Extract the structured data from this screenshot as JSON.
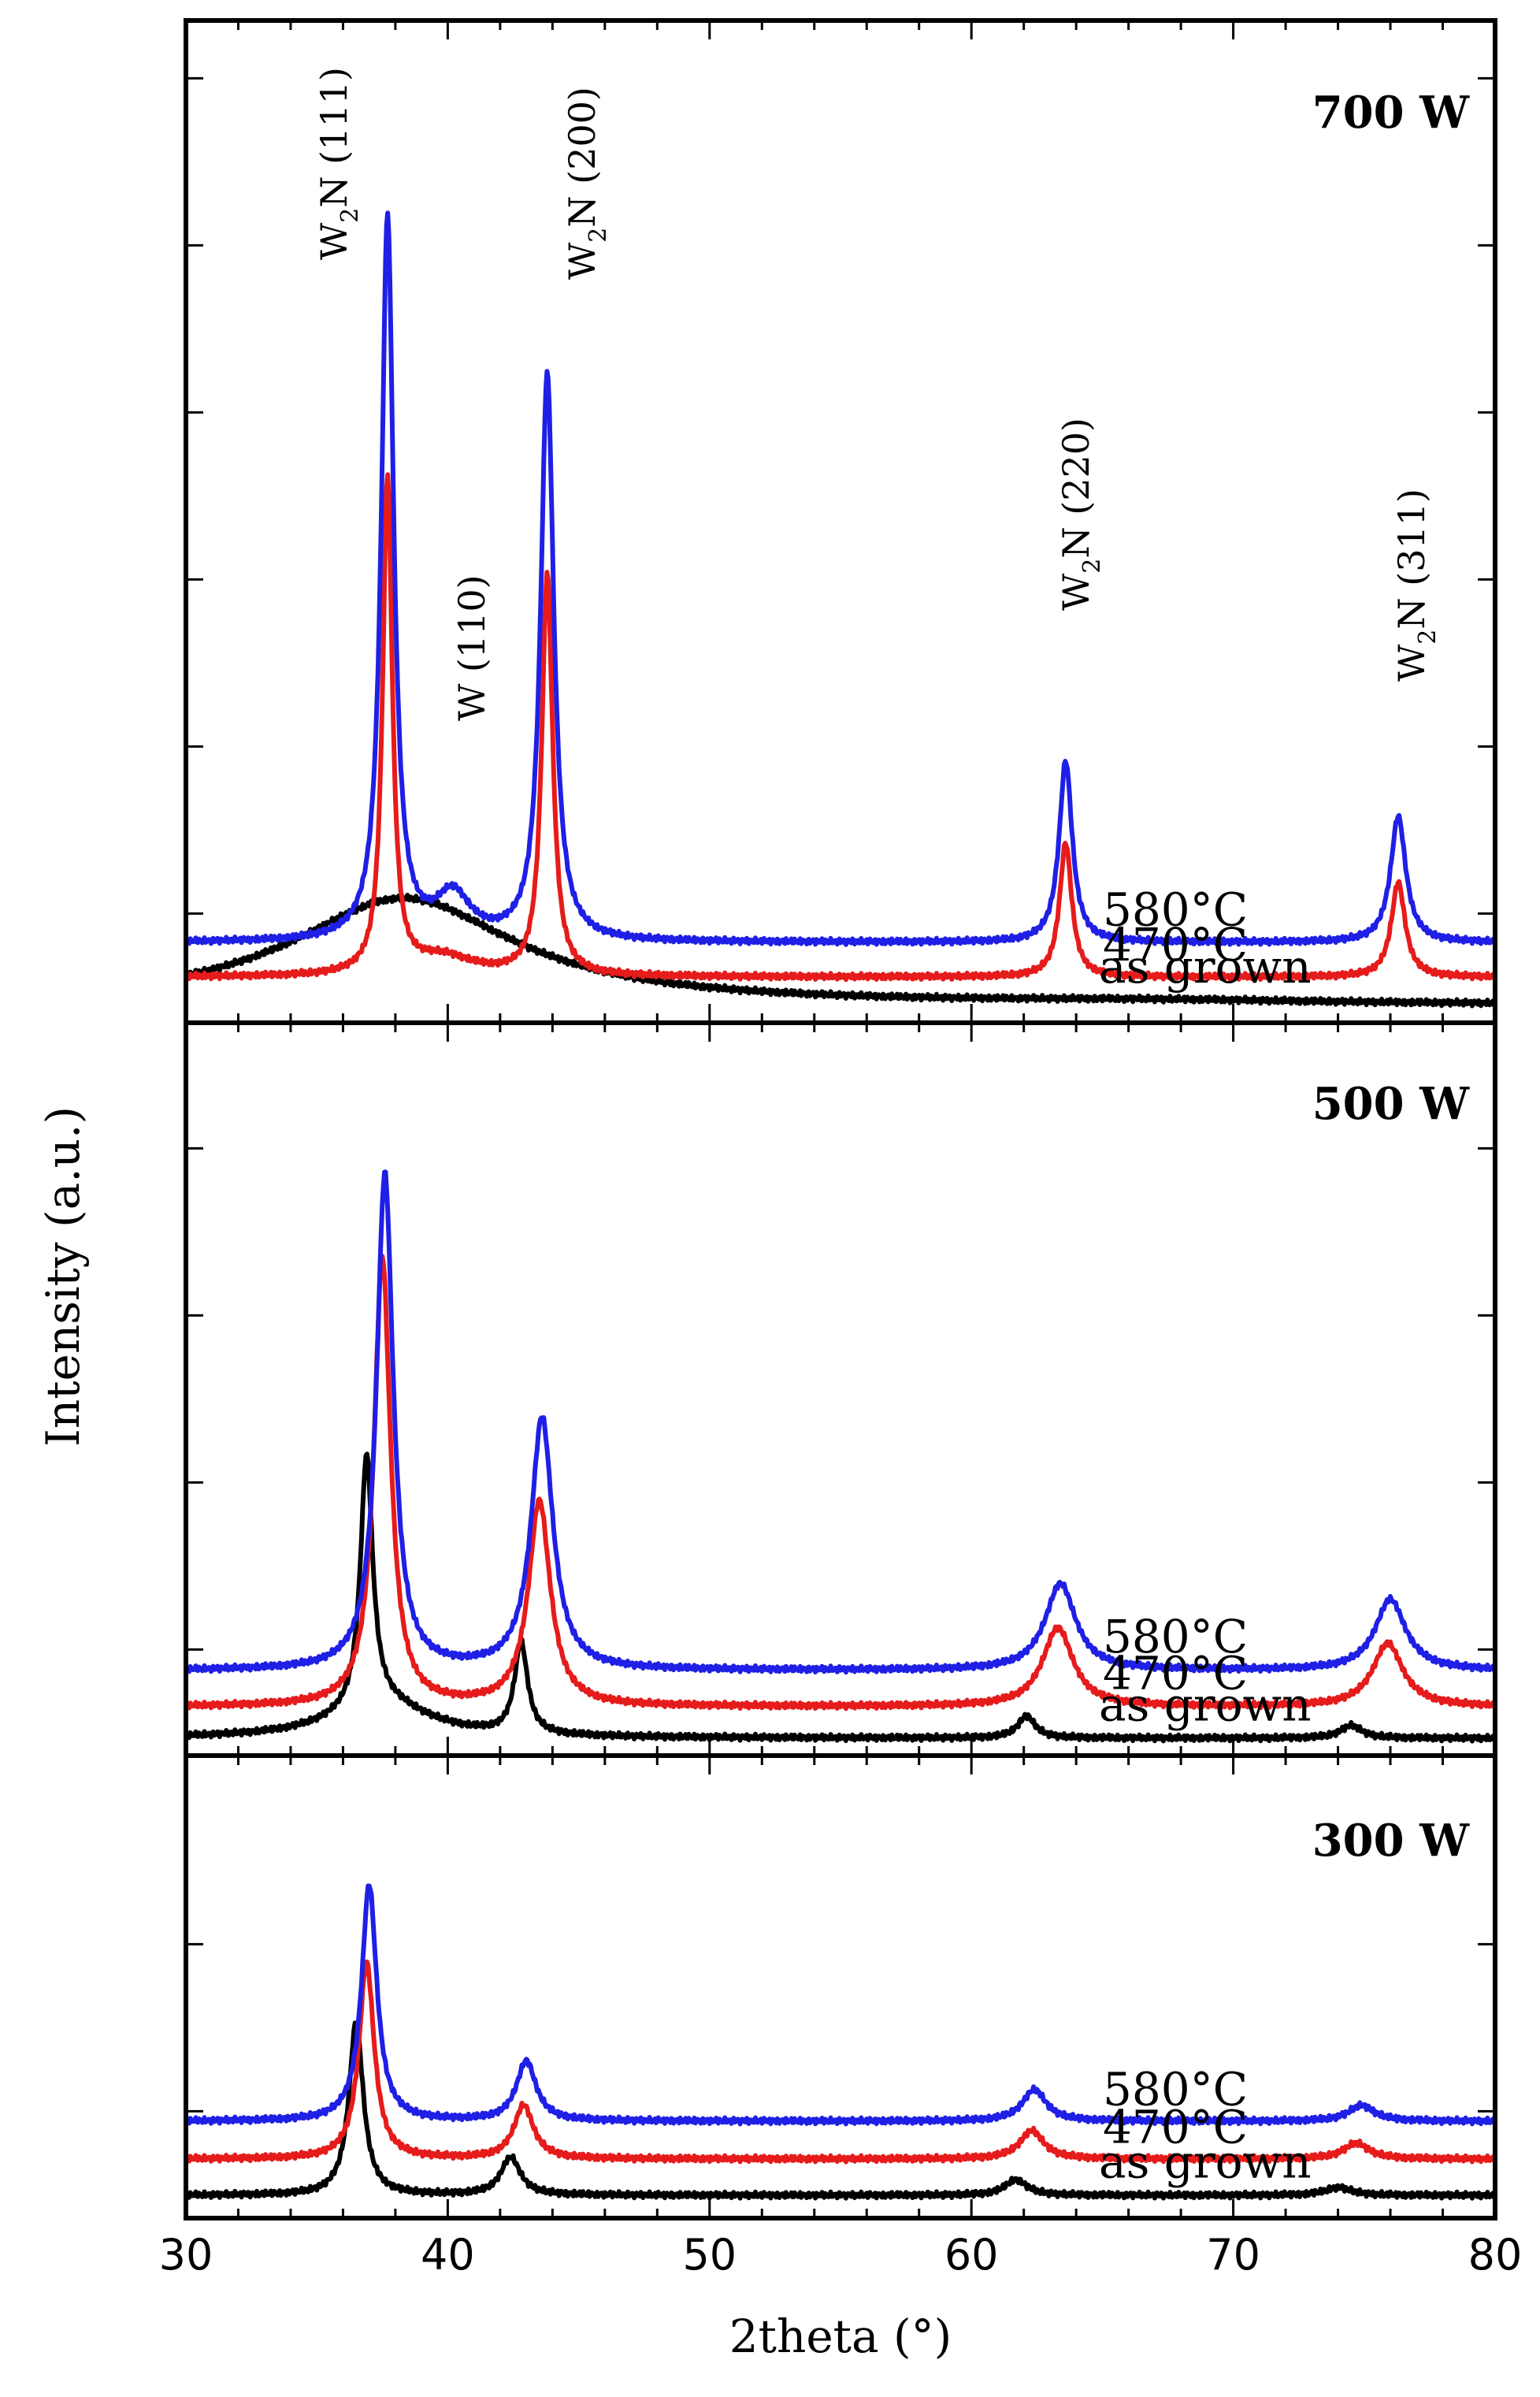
{
  "chart_data": {
    "type": "line",
    "title": "",
    "xlabel": "2theta (°)",
    "ylabel": "Intensity (a.u.)",
    "xlim": [
      30,
      80
    ],
    "xticks": [
      30,
      40,
      50,
      60,
      70,
      80
    ],
    "grid": false,
    "colors": {
      "580°C": "#1f1fe6",
      "470°C": "#e61b1b",
      "as grown": "#000000"
    },
    "peak_annotations": [
      {
        "label": "W2N (111)",
        "base": "W",
        "sub": "2",
        "rest": "N (111)",
        "x": 37.7
      },
      {
        "label": "W2N (200)",
        "base": "W",
        "sub": "2",
        "rest": "N (200)",
        "x": 43.8
      },
      {
        "label": "W (110)",
        "base": "W (110)",
        "sub": "",
        "rest": "",
        "x": 40.2
      },
      {
        "label": "W2N (220)",
        "base": "W",
        "sub": "2",
        "rest": "N (220)",
        "x": 63.6
      },
      {
        "label": "W2N (311)",
        "base": "W",
        "sub": "2",
        "rest": "N (311)",
        "x": 76.3
      }
    ],
    "panels": [
      {
        "name": "700 W",
        "series": [
          {
            "name": "580°C",
            "label": "580°C",
            "baseline": 0.4,
            "peaks": [
              [
                37.7,
                4.6,
                0.28
              ],
              [
                40.2,
                0.28,
                0.8
              ],
              [
                43.8,
                3.6,
                0.3
              ],
              [
                63.6,
                1.15,
                0.3
              ],
              [
                76.3,
                0.8,
                0.35
              ]
            ]
          },
          {
            "name": "470°C",
            "label": "470°C",
            "baseline": 0.18,
            "peaks": [
              [
                37.7,
                3.15,
                0.22
              ],
              [
                39.8,
                0.12,
                1.5
              ],
              [
                43.8,
                2.55,
                0.25
              ],
              [
                63.6,
                0.85,
                0.28
              ],
              [
                76.3,
                0.6,
                0.32
              ]
            ]
          },
          {
            "name": "as grown",
            "label": "as grown",
            "baseline": 0.0,
            "peaks": [
              [
                38.3,
                0.68,
                5.2
              ],
              [
                67.0,
                0.02,
                8.0
              ]
            ]
          }
        ]
      },
      {
        "name": "500 W",
        "series": [
          {
            "name": "580°C",
            "label": "580°C",
            "baseline": 0.45,
            "peaks": [
              [
                37.6,
                3.15,
                0.38
              ],
              [
                43.6,
                1.6,
                0.5
              ],
              [
                63.4,
                0.55,
                0.7
              ],
              [
                76.0,
                0.45,
                0.7
              ]
            ]
          },
          {
            "name": "470°C",
            "label": "470°C",
            "baseline": 0.22,
            "peaks": [
              [
                37.5,
                2.85,
                0.38
              ],
              [
                43.5,
                1.3,
                0.5
              ],
              [
                63.3,
                0.5,
                0.7
              ],
              [
                75.9,
                0.4,
                0.7
              ]
            ]
          },
          {
            "name": "as grown",
            "label": "as grown",
            "baseline": 0.02,
            "peaks": [
              [
                36.9,
                1.6,
                0.28
              ],
              [
                37.5,
                0.22,
                2.2
              ],
              [
                42.8,
                0.58,
                0.3
              ],
              [
                62.1,
                0.14,
                0.4
              ],
              [
                74.5,
                0.08,
                0.5
              ]
            ]
          }
        ]
      },
      {
        "name": "300 W",
        "series": [
          {
            "name": "580°C",
            "label": "580°C",
            "baseline": 0.52,
            "peaks": [
              [
                37.0,
                1.5,
                0.35
              ],
              [
                43.0,
                0.38,
                0.45
              ],
              [
                62.4,
                0.2,
                0.55
              ],
              [
                74.9,
                0.1,
                0.6
              ]
            ]
          },
          {
            "name": "470°C",
            "label": "470°C",
            "baseline": 0.28,
            "peaks": [
              [
                36.9,
                1.25,
                0.35
              ],
              [
                42.9,
                0.34,
                0.45
              ],
              [
                62.3,
                0.18,
                0.55
              ],
              [
                74.7,
                0.1,
                0.6
              ]
            ]
          },
          {
            "name": "as grown",
            "label": "as grown",
            "baseline": 0.05,
            "peaks": [
              [
                36.5,
                1.1,
                0.33
              ],
              [
                42.4,
                0.24,
                0.45
              ],
              [
                61.7,
                0.1,
                0.5
              ],
              [
                74.0,
                0.05,
                0.6
              ]
            ]
          }
        ]
      }
    ]
  }
}
